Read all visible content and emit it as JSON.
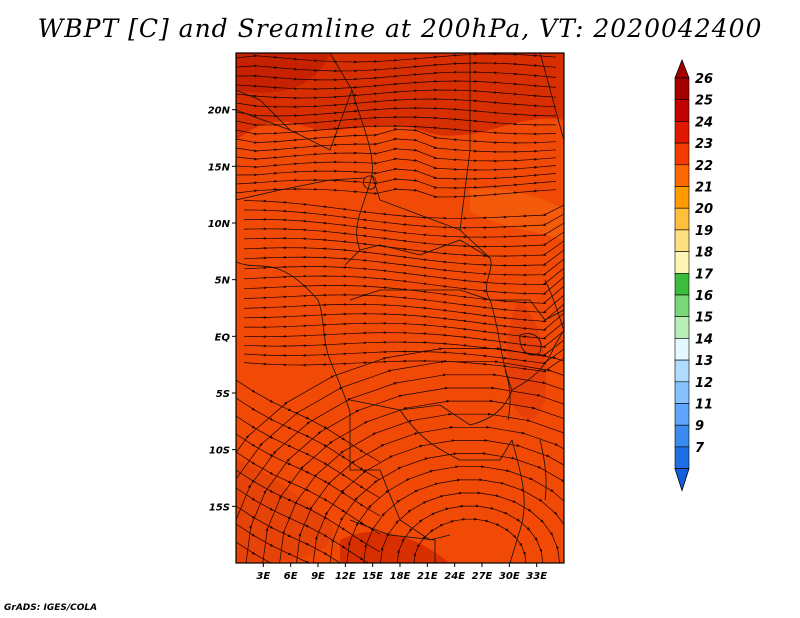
{
  "title": "WBPT [C] and Sreamline at 200hPa, VT: 2020042400",
  "credit": "GrADS: IGES/COLA",
  "map": {
    "lon_range": [
      0,
      36
    ],
    "lat_range": [
      -20,
      25
    ],
    "lat_ticks": [
      {
        "value": 20,
        "label": "20N"
      },
      {
        "value": 15,
        "label": "15N"
      },
      {
        "value": 10,
        "label": "10N"
      },
      {
        "value": 5,
        "label": "5N"
      },
      {
        "value": 0,
        "label": "EQ"
      },
      {
        "value": -5,
        "label": "5S"
      },
      {
        "value": -10,
        "label": "10S"
      },
      {
        "value": -15,
        "label": "15S"
      }
    ],
    "lon_ticks": [
      {
        "value": 3,
        "label": "3E"
      },
      {
        "value": 6,
        "label": "6E"
      },
      {
        "value": 9,
        "label": "9E"
      },
      {
        "value": 12,
        "label": "12E"
      },
      {
        "value": 15,
        "label": "15E"
      },
      {
        "value": 18,
        "label": "18E"
      },
      {
        "value": 21,
        "label": "21E"
      },
      {
        "value": 24,
        "label": "24E"
      },
      {
        "value": 27,
        "label": "27E"
      },
      {
        "value": 30,
        "label": "30E"
      },
      {
        "value": 33,
        "label": "33E"
      }
    ]
  },
  "colorbar": {
    "levels": [
      {
        "label": "26",
        "color": "#a50000"
      },
      {
        "label": "25",
        "color": "#c10000"
      },
      {
        "label": "24",
        "color": "#e11800"
      },
      {
        "label": "23",
        "color": "#f53c00"
      },
      {
        "label": "22",
        "color": "#ff6a00"
      },
      {
        "label": "21",
        "color": "#ff9a00"
      },
      {
        "label": "20",
        "color": "#ffbe3c"
      },
      {
        "label": "19",
        "color": "#ffe080"
      },
      {
        "label": "18",
        "color": "#fff5b5"
      },
      {
        "label": "17",
        "color": "#3cbc3c"
      },
      {
        "label": "16",
        "color": "#7ad87a"
      },
      {
        "label": "15",
        "color": "#b8eeb8"
      },
      {
        "label": "14",
        "color": "#e6f8ff"
      },
      {
        "label": "13",
        "color": "#b0dcff"
      },
      {
        "label": "12",
        "color": "#86c2ff"
      },
      {
        "label": "11",
        "color": "#5ea6ff"
      },
      {
        "label": "9",
        "color": "#3c8cf0"
      },
      {
        "label": "7",
        "color": "#1e6ee6"
      }
    ],
    "bottom_color": "#1460dc"
  }
}
